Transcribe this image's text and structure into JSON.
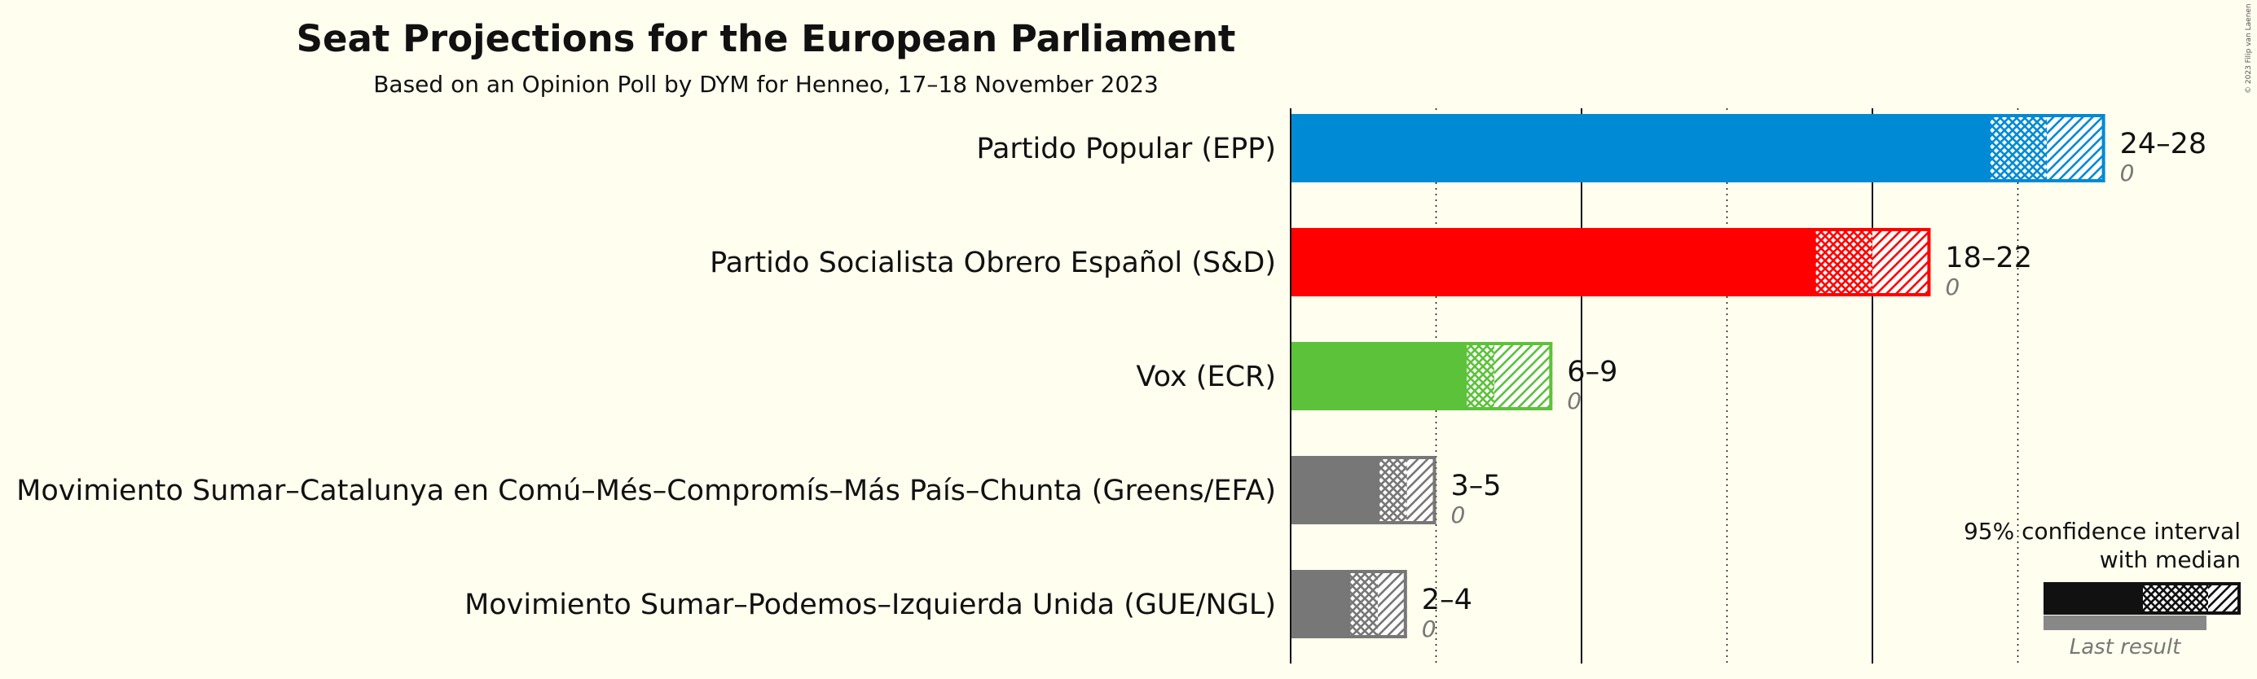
{
  "header": {
    "title": "Seat Projections for the European Parliament",
    "subtitle": "Based on an Opinion Poll by DYM for Henneo, 17–18 November 2023"
  },
  "copyright": "© 2023 Filip van Laenen",
  "legend": {
    "line1": "95% confidence interval",
    "line2": "with median",
    "last_result": "Last result"
  },
  "chart_data": {
    "type": "bar",
    "orientation": "horizontal",
    "title": "Seat Projections for the European Parliament",
    "subtitle": "Based on an Opinion Poll by DYM for Henneo, 17–18 November 2023",
    "xlim": [
      0,
      28
    ],
    "gridlines": [
      5,
      10,
      15,
      20,
      25
    ],
    "categories": [
      "Partido Popular (EPP)",
      "Partido Socialista Obrero Español (S&D)",
      "Vox (ECR)",
      "Movimiento Sumar–Catalunya en Comú–Més–Compromís–Más País–Chunta (Greens/EFA)",
      "Movimiento Sumar–Podemos–Izquierda Unida (GUE/NGL)"
    ],
    "series": [
      {
        "party": "Partido Popular (EPP)",
        "color": "#008AD6",
        "low": 24,
        "median": 26,
        "high": 28,
        "range_label": "24–28",
        "last_result": 0,
        "last_label": "0"
      },
      {
        "party": "Partido Socialista Obrero Español (S&D)",
        "color": "#FF0000",
        "low": 18,
        "median": 20,
        "high": 22,
        "range_label": "18–22",
        "last_result": 0,
        "last_label": "0"
      },
      {
        "party": "Vox (ECR)",
        "color": "#5CC23A",
        "low": 6,
        "median": 7,
        "high": 9,
        "range_label": "6–9",
        "last_result": 0,
        "last_label": "0"
      },
      {
        "party": "Movimiento Sumar–Catalunya en Comú–Més–Compromís–Más País–Chunta (Greens/EFA)",
        "color": "#777777",
        "low": 3,
        "median": 4,
        "high": 5,
        "range_label": "3–5",
        "last_result": 0,
        "last_label": "0"
      },
      {
        "party": "Movimiento Sumar–Podemos–Izquierda Unida (GUE/NGL)",
        "color": "#777777",
        "low": 2,
        "median": 3,
        "high": 4,
        "range_label": "2–4",
        "last_result": 0,
        "last_label": "0"
      }
    ]
  }
}
